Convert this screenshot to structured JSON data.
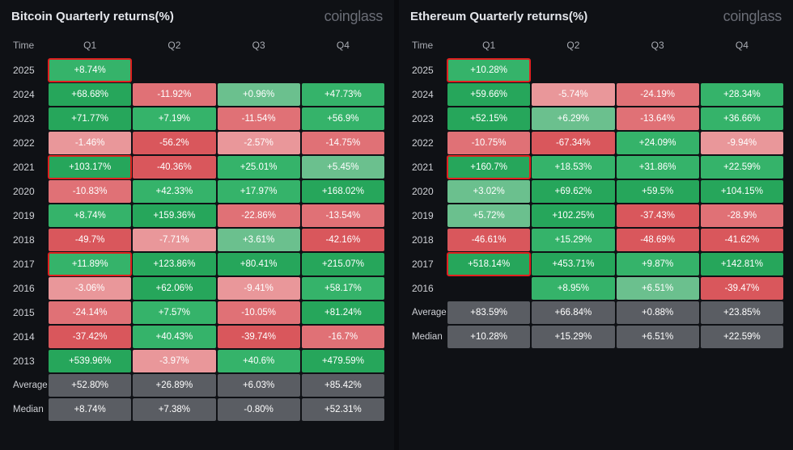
{
  "brand": "coinglass",
  "colors": {
    "pos_strong": "#26a65b",
    "pos_mid": "#35b36a",
    "pos_light": "#6bc08e",
    "neg_strong": "#d9575c",
    "neg_mid": "#e07176",
    "neg_light": "#e9979a",
    "summary": "#5a5d63",
    "bg": "#0f1115"
  },
  "columns": [
    "Time",
    "Q1",
    "Q2",
    "Q3",
    "Q4"
  ],
  "summary_labels": [
    "Average",
    "Median"
  ],
  "panels": [
    {
      "title": "Bitcoin Quarterly returns(%)",
      "rows": [
        {
          "year": "2025",
          "cells": [
            {
              "v": "+8.74%",
              "c": "pos_mid",
              "hl": true
            },
            null,
            null,
            null
          ]
        },
        {
          "year": "2024",
          "cells": [
            {
              "v": "+68.68%",
              "c": "pos_strong"
            },
            {
              "v": "-11.92%",
              "c": "neg_mid"
            },
            {
              "v": "+0.96%",
              "c": "pos_light"
            },
            {
              "v": "+47.73%",
              "c": "pos_mid"
            }
          ]
        },
        {
          "year": "2023",
          "cells": [
            {
              "v": "+71.77%",
              "c": "pos_strong"
            },
            {
              "v": "+7.19%",
              "c": "pos_mid"
            },
            {
              "v": "-11.54%",
              "c": "neg_mid"
            },
            {
              "v": "+56.9%",
              "c": "pos_mid"
            }
          ]
        },
        {
          "year": "2022",
          "cells": [
            {
              "v": "-1.46%",
              "c": "neg_light"
            },
            {
              "v": "-56.2%",
              "c": "neg_strong"
            },
            {
              "v": "-2.57%",
              "c": "neg_light"
            },
            {
              "v": "-14.75%",
              "c": "neg_mid"
            }
          ]
        },
        {
          "year": "2021",
          "cells": [
            {
              "v": "+103.17%",
              "c": "pos_strong",
              "hl": true
            },
            {
              "v": "-40.36%",
              "c": "neg_strong"
            },
            {
              "v": "+25.01%",
              "c": "pos_mid"
            },
            {
              "v": "+5.45%",
              "c": "pos_light"
            }
          ]
        },
        {
          "year": "2020",
          "cells": [
            {
              "v": "-10.83%",
              "c": "neg_mid"
            },
            {
              "v": "+42.33%",
              "c": "pos_mid"
            },
            {
              "v": "+17.97%",
              "c": "pos_mid"
            },
            {
              "v": "+168.02%",
              "c": "pos_strong"
            }
          ]
        },
        {
          "year": "2019",
          "cells": [
            {
              "v": "+8.74%",
              "c": "pos_mid"
            },
            {
              "v": "+159.36%",
              "c": "pos_strong"
            },
            {
              "v": "-22.86%",
              "c": "neg_mid"
            },
            {
              "v": "-13.54%",
              "c": "neg_mid"
            }
          ]
        },
        {
          "year": "2018",
          "cells": [
            {
              "v": "-49.7%",
              "c": "neg_strong"
            },
            {
              "v": "-7.71%",
              "c": "neg_light"
            },
            {
              "v": "+3.61%",
              "c": "pos_light"
            },
            {
              "v": "-42.16%",
              "c": "neg_strong"
            }
          ]
        },
        {
          "year": "2017",
          "cells": [
            {
              "v": "+11.89%",
              "c": "pos_mid",
              "hl": true
            },
            {
              "v": "+123.86%",
              "c": "pos_strong"
            },
            {
              "v": "+80.41%",
              "c": "pos_strong"
            },
            {
              "v": "+215.07%",
              "c": "pos_strong"
            }
          ]
        },
        {
          "year": "2016",
          "cells": [
            {
              "v": "-3.06%",
              "c": "neg_light"
            },
            {
              "v": "+62.06%",
              "c": "pos_strong"
            },
            {
              "v": "-9.41%",
              "c": "neg_light"
            },
            {
              "v": "+58.17%",
              "c": "pos_mid"
            }
          ]
        },
        {
          "year": "2015",
          "cells": [
            {
              "v": "-24.14%",
              "c": "neg_mid"
            },
            {
              "v": "+7.57%",
              "c": "pos_mid"
            },
            {
              "v": "-10.05%",
              "c": "neg_mid"
            },
            {
              "v": "+81.24%",
              "c": "pos_strong"
            }
          ]
        },
        {
          "year": "2014",
          "cells": [
            {
              "v": "-37.42%",
              "c": "neg_strong"
            },
            {
              "v": "+40.43%",
              "c": "pos_mid"
            },
            {
              "v": "-39.74%",
              "c": "neg_strong"
            },
            {
              "v": "-16.7%",
              "c": "neg_mid"
            }
          ]
        },
        {
          "year": "2013",
          "cells": [
            {
              "v": "+539.96%",
              "c": "pos_strong"
            },
            {
              "v": "-3.97%",
              "c": "neg_light"
            },
            {
              "v": "+40.6%",
              "c": "pos_mid"
            },
            {
              "v": "+479.59%",
              "c": "pos_strong"
            }
          ]
        }
      ],
      "summary": [
        {
          "label": "Average",
          "cells": [
            {
              "v": "+52.80%"
            },
            {
              "v": "+26.89%"
            },
            {
              "v": "+6.03%"
            },
            {
              "v": "+85.42%"
            }
          ]
        },
        {
          "label": "Median",
          "cells": [
            {
              "v": "+8.74%"
            },
            {
              "v": "+7.38%"
            },
            {
              "v": "-0.80%"
            },
            {
              "v": "+52.31%"
            }
          ]
        }
      ]
    },
    {
      "title": "Ethereum Quarterly returns(%)",
      "rows": [
        {
          "year": "2025",
          "cells": [
            {
              "v": "+10.28%",
              "c": "pos_mid",
              "hl": true
            },
            null,
            null,
            null
          ]
        },
        {
          "year": "2024",
          "cells": [
            {
              "v": "+59.66%",
              "c": "pos_strong"
            },
            {
              "v": "-5.74%",
              "c": "neg_light"
            },
            {
              "v": "-24.19%",
              "c": "neg_mid"
            },
            {
              "v": "+28.34%",
              "c": "pos_mid"
            }
          ]
        },
        {
          "year": "2023",
          "cells": [
            {
              "v": "+52.15%",
              "c": "pos_strong"
            },
            {
              "v": "+6.29%",
              "c": "pos_light"
            },
            {
              "v": "-13.64%",
              "c": "neg_mid"
            },
            {
              "v": "+36.66%",
              "c": "pos_mid"
            }
          ]
        },
        {
          "year": "2022",
          "cells": [
            {
              "v": "-10.75%",
              "c": "neg_mid"
            },
            {
              "v": "-67.34%",
              "c": "neg_strong"
            },
            {
              "v": "+24.09%",
              "c": "pos_mid"
            },
            {
              "v": "-9.94%",
              "c": "neg_light"
            }
          ]
        },
        {
          "year": "2021",
          "cells": [
            {
              "v": "+160.7%",
              "c": "pos_strong",
              "hl": true
            },
            {
              "v": "+18.53%",
              "c": "pos_mid"
            },
            {
              "v": "+31.86%",
              "c": "pos_mid"
            },
            {
              "v": "+22.59%",
              "c": "pos_mid"
            }
          ]
        },
        {
          "year": "2020",
          "cells": [
            {
              "v": "+3.02%",
              "c": "pos_light"
            },
            {
              "v": "+69.62%",
              "c": "pos_strong"
            },
            {
              "v": "+59.5%",
              "c": "pos_strong"
            },
            {
              "v": "+104.15%",
              "c": "pos_strong"
            }
          ]
        },
        {
          "year": "2019",
          "cells": [
            {
              "v": "+5.72%",
              "c": "pos_light"
            },
            {
              "v": "+102.25%",
              "c": "pos_strong"
            },
            {
              "v": "-37.43%",
              "c": "neg_strong"
            },
            {
              "v": "-28.9%",
              "c": "neg_mid"
            }
          ]
        },
        {
          "year": "2018",
          "cells": [
            {
              "v": "-46.61%",
              "c": "neg_strong"
            },
            {
              "v": "+15.29%",
              "c": "pos_mid"
            },
            {
              "v": "-48.69%",
              "c": "neg_strong"
            },
            {
              "v": "-41.62%",
              "c": "neg_strong"
            }
          ]
        },
        {
          "year": "2017",
          "cells": [
            {
              "v": "+518.14%",
              "c": "pos_strong",
              "hl": true
            },
            {
              "v": "+453.71%",
              "c": "pos_strong"
            },
            {
              "v": "+9.87%",
              "c": "pos_mid"
            },
            {
              "v": "+142.81%",
              "c": "pos_strong"
            }
          ]
        },
        {
          "year": "2016",
          "cells": [
            null,
            {
              "v": "+8.95%",
              "c": "pos_mid"
            },
            {
              "v": "+6.51%",
              "c": "pos_light"
            },
            {
              "v": "-39.47%",
              "c": "neg_strong"
            }
          ]
        }
      ],
      "summary": [
        {
          "label": "Average",
          "cells": [
            {
              "v": "+83.59%"
            },
            {
              "v": "+66.84%"
            },
            {
              "v": "+0.88%"
            },
            {
              "v": "+23.85%"
            }
          ]
        },
        {
          "label": "Median",
          "cells": [
            {
              "v": "+10.28%"
            },
            {
              "v": "+15.29%"
            },
            {
              "v": "+6.51%"
            },
            {
              "v": "+22.59%"
            }
          ]
        }
      ]
    }
  ]
}
